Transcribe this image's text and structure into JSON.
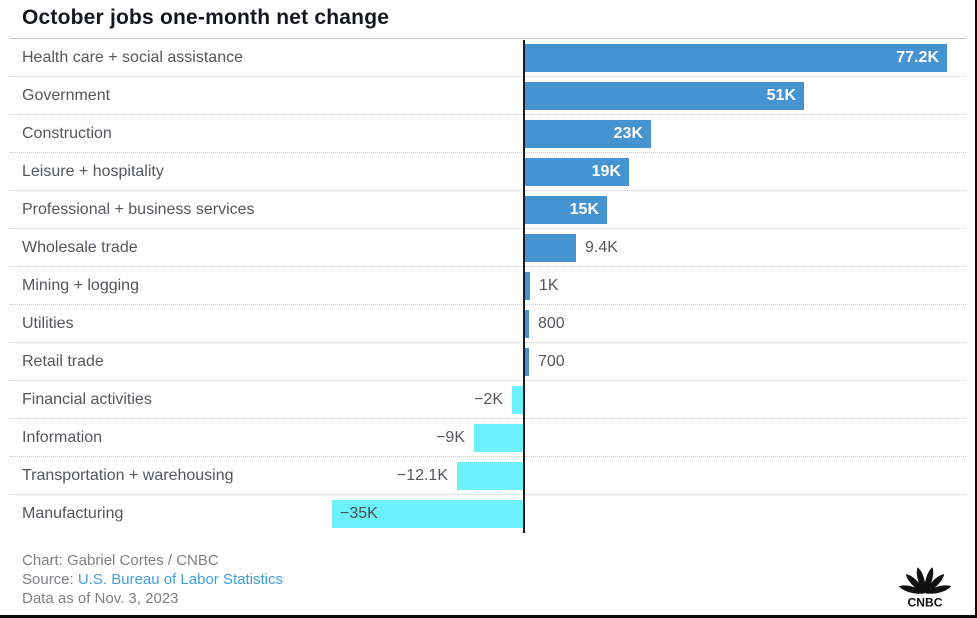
{
  "title": "October jobs one-month net change",
  "footer": {
    "credit": "Chart: Gabriel Cortes / CNBC",
    "source_label": "Source: ",
    "source_link": "U.S. Bureau of Labor Statistics",
    "data_as_of": "Data as of Nov. 3, 2023",
    "logo_text": "CNBC"
  },
  "colors": {
    "positive_bar": "#4594d1",
    "negative_bar": "#6cf0fa",
    "axis_line": "#1b1d21",
    "category_text": "#54575b",
    "inside_value_text": "#ffffff",
    "title_text": "#14171c",
    "footer_text": "#7d8084",
    "source_link": "#3fa0db"
  },
  "chart_data": {
    "type": "bar",
    "orientation": "horizontal",
    "title": "October jobs one-month net change",
    "unit": "jobs (thousands)",
    "categories": [
      "Health care + social assistance",
      "Government",
      "Construction",
      "Leisure + hospitality",
      "Professional + business services",
      "Wholesale trade",
      "Mining + logging",
      "Utilities",
      "Retail trade",
      "Financial activities",
      "Information",
      "Transportation + warehousing",
      "Manufacturing"
    ],
    "values_thousands": [
      77.2,
      51,
      23,
      19,
      15,
      9.4,
      1,
      0.8,
      0.7,
      -2,
      -9,
      -12.1,
      -35
    ],
    "value_labels": [
      "77.2K",
      "51K",
      "23K",
      "19K",
      "15K",
      "9.4K",
      "1K",
      "800",
      "700",
      "−2K",
      "−9K",
      "−12.1K",
      "−35K"
    ],
    "baseline": 0,
    "xlim_thousands": [
      -40,
      82
    ],
    "grid": "dotted row separators, solid top rule, solid vertical zero axis",
    "legend": "none"
  }
}
